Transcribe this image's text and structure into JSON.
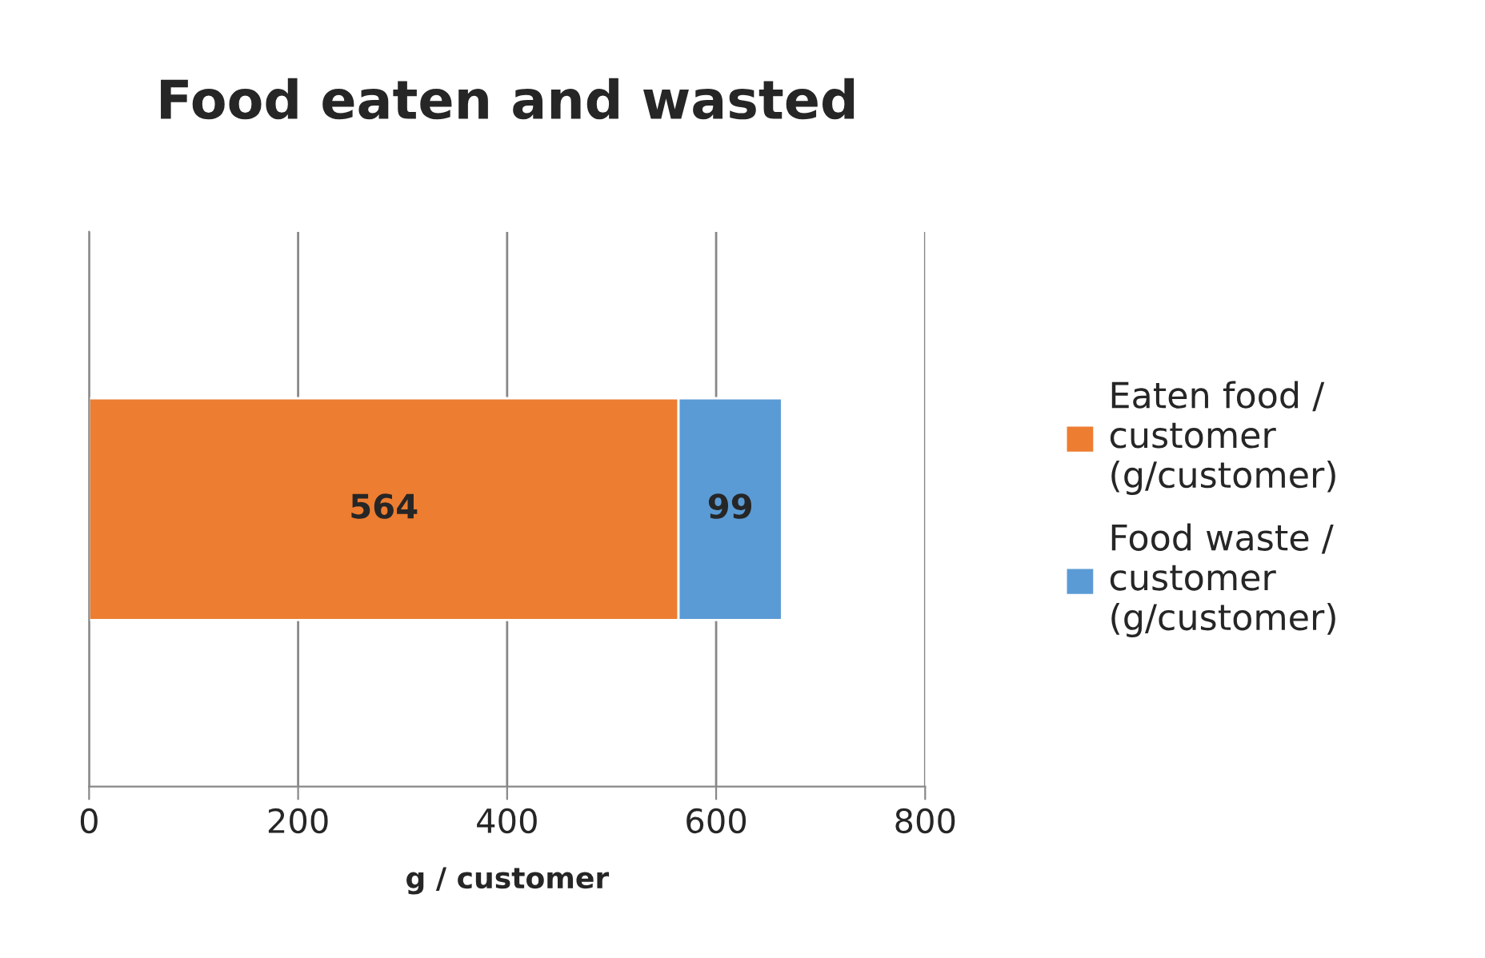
{
  "chart_data": {
    "type": "bar",
    "title": "Food eaten and wasted",
    "xlabel": "g / customer",
    "orientation": "horizontal",
    "stacked": true,
    "categories": [
      null
    ],
    "series": [
      {
        "name": "Eaten food /\ncustomer\n(g/customer)",
        "color": "#ed7d31",
        "values": [
          564
        ]
      },
      {
        "name": "Food waste /\ncustomer\n(g/customer)",
        "color": "#5b9bd5",
        "values": [
          99
        ]
      }
    ],
    "xlim": [
      0,
      800
    ],
    "xticks": [
      0,
      200,
      400,
      600,
      800
    ],
    "grid": "x",
    "legend": "right",
    "data_labels": true
  }
}
